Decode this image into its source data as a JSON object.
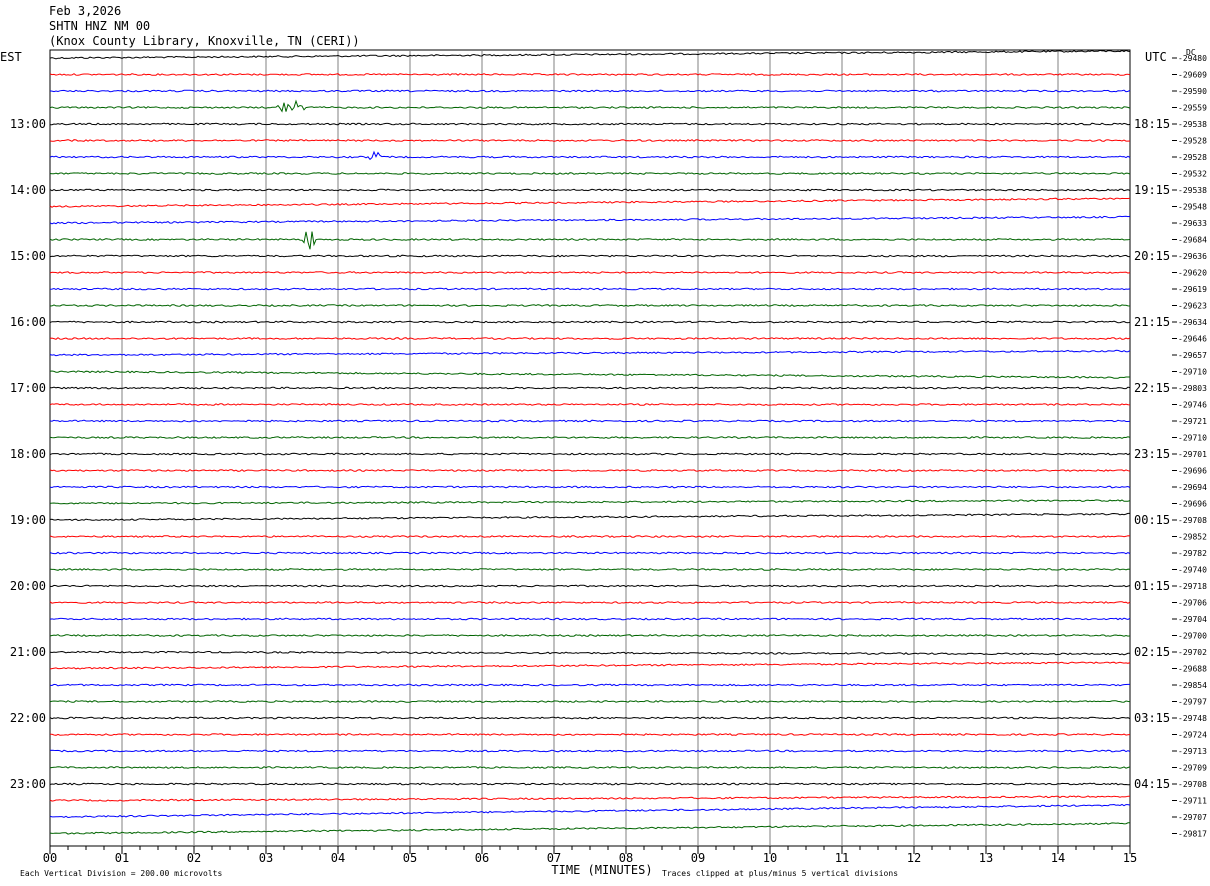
{
  "header": {
    "date": "Feb 3,2026",
    "station": "SHTN HNZ NM 00",
    "location": "(Knox County Library, Knoxville, TN (CERI))"
  },
  "left_timezone": "EST",
  "right_timezone": "UTC",
  "dc_label": "DC",
  "footer": {
    "xlabel": "TIME (MINUTES)",
    "vertical_division": "Each Vertical Division =  200.00 microvolts",
    "clip_note": "Traces clipped at plus/minus 5 vertical divisions"
  },
  "colors": {
    "cycle": [
      "#000000",
      "#ff0000",
      "#0000ff",
      "#006400"
    ],
    "grid": "#808080"
  },
  "chart_data": {
    "type": "line",
    "title": "SHTN HNZ NM 00",
    "xlabel": "TIME (MINUTES)",
    "x_range": [
      0,
      15
    ],
    "x_ticks": [
      "00",
      "01",
      "02",
      "03",
      "04",
      "05",
      "06",
      "07",
      "08",
      "09",
      "10",
      "11",
      "12",
      "13",
      "14",
      "15"
    ],
    "minutes_per_trace": 15,
    "traces_count": 48,
    "left_hour_labels": [
      "13:00",
      "14:00",
      "15:00",
      "16:00",
      "17:00",
      "18:00",
      "19:00",
      "20:00",
      "21:00",
      "22:00",
      "23:00"
    ],
    "right_hour_labels": [
      "18:15",
      "19:15",
      "20:15",
      "21:15",
      "22:15",
      "23:15",
      "00:15",
      "01:15",
      "02:15",
      "03:15",
      "04:15"
    ],
    "dc_offsets": [
      -29480,
      -29609,
      -29590,
      -29559,
      -29538,
      -29528,
      -29528,
      -29532,
      -29538,
      -29548,
      -29633,
      -29684,
      -29636,
      -29620,
      -29619,
      -29623,
      -29634,
      -29646,
      -29657,
      -29710,
      -29803,
      -29746,
      -29721,
      -29710,
      -29701,
      -29696,
      -29694,
      -29696,
      -29708,
      -29852,
      -29782,
      -29740,
      -29718,
      -29706,
      -29704,
      -29700,
      -29702,
      -29688,
      -29854,
      -29797,
      -29748,
      -29724,
      -29713,
      -29709,
      -29708,
      -29711,
      -29707,
      -29817
    ],
    "events": [
      {
        "trace": 3,
        "start_min": 3.1,
        "end_min": 3.6,
        "peak_divisions": 0.6
      },
      {
        "trace": 6,
        "start_min": 4.4,
        "end_min": 4.6,
        "peak_divisions": 0.7
      },
      {
        "trace": 11,
        "start_min": 3.5,
        "end_min": 3.7,
        "peak_divisions": 1.0
      }
    ]
  }
}
